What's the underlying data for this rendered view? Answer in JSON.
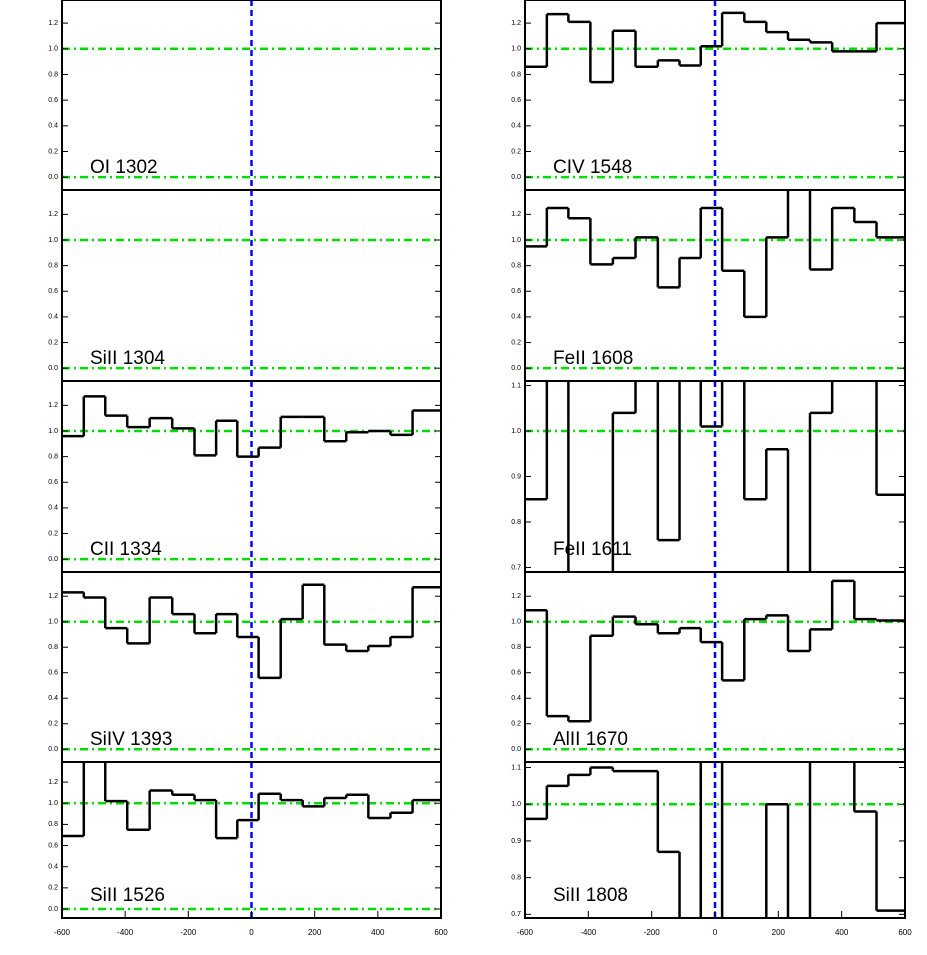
{
  "chart_data": [
    {
      "type": "line",
      "title": "OI 1302",
      "xlim": [
        -600,
        600
      ],
      "ylim": [
        -0.1,
        1.38
      ],
      "yticks": [
        {
          "value": 0,
          "label": "0.0"
        },
        0.2,
        0.4,
        0.6,
        0.8,
        {
          "value": 1,
          "label": "1.0"
        },
        1.2
      ],
      "hlines": [
        0,
        1
      ],
      "vlines": [
        0
      ],
      "hline_color": "#00dd00",
      "vline_color": "#0000ff"
    },
    {
      "type": "line",
      "title": "SiII 1304",
      "xlim": [
        -600,
        600
      ],
      "ylim": [
        -0.1,
        1.39
      ],
      "yticks": [
        {
          "value": 0,
          "label": "0.0"
        },
        0.2,
        0.4,
        0.6,
        0.8,
        {
          "value": 1,
          "label": "1.0"
        },
        1.2
      ],
      "hlines": [
        0,
        1
      ],
      "vlines": [
        0
      ],
      "hline_color": "#00dd00",
      "vline_color": "#0000ff"
    },
    {
      "type": "line",
      "title": "CII 1334",
      "xlim": [
        -600,
        600
      ],
      "ylim": [
        -0.1,
        1.39
      ],
      "yticks": [
        {
          "value": 0,
          "label": "0.0"
        },
        0.2,
        0.4,
        0.6,
        0.8,
        {
          "value": 1,
          "label": "1.0"
        },
        1.2
      ],
      "hlines": [
        0,
        1
      ],
      "vlines": [
        0
      ],
      "hline_color": "#00dd00",
      "vline_color": "#0000ff",
      "x": [
        -565,
        -497,
        -429,
        -358,
        -287,
        -215,
        -146,
        -78,
        -12,
        57,
        128,
        196,
        265,
        335,
        405,
        475,
        545
      ],
      "values": [
        0.96,
        1.27,
        1.12,
        1.03,
        1.1,
        1.02,
        0.81,
        1.08,
        0.8,
        0.87,
        1.11,
        1.11,
        0.92,
        0.99,
        1.0,
        0.97,
        1.16
      ],
      "color": "#000000"
    },
    {
      "type": "line",
      "title": "SiIV 1393",
      "xlim": [
        -600,
        600
      ],
      "ylim": [
        -0.1,
        1.39
      ],
      "yticks": [
        {
          "value": 0,
          "label": "0.0"
        },
        0.2,
        0.4,
        0.6,
        0.8,
        {
          "value": 1,
          "label": "1.0"
        },
        1.2
      ],
      "hlines": [
        0,
        1
      ],
      "vlines": [
        0
      ],
      "hline_color": "#00dd00",
      "vline_color": "#0000ff",
      "x": [
        -565,
        -497,
        -429,
        -358,
        -287,
        -215,
        -146,
        -78,
        -12,
        57,
        128,
        196,
        265,
        335,
        405,
        475,
        545
      ],
      "values": [
        1.23,
        1.19,
        0.95,
        0.83,
        1.19,
        1.06,
        0.91,
        1.06,
        0.88,
        0.56,
        1.02,
        1.29,
        0.82,
        0.77,
        0.81,
        0.88,
        1.27
      ],
      "color": "#000000"
    },
    {
      "type": "line",
      "title": "SiII 1526",
      "xlim": [
        -600,
        600
      ],
      "ylim": [
        -0.085,
        1.39
      ],
      "yticks": [
        {
          "value": 0,
          "label": "0.0"
        },
        0.2,
        0.4,
        0.6,
        0.8,
        {
          "value": 1,
          "label": "1.0"
        },
        1.2
      ],
      "xticks": [
        -600,
        -400,
        -200,
        0,
        200,
        400,
        600
      ],
      "hlines": [
        0,
        1
      ],
      "vlines": [
        0
      ],
      "hline_color": "#00dd00",
      "vline_color": "#0000ff",
      "x": [
        -565,
        -497,
        -429,
        -358,
        -287,
        -215,
        -146,
        -78,
        -12,
        57,
        128,
        196,
        265,
        335,
        405,
        475,
        545
      ],
      "values": [
        0.69,
        1.4,
        1.02,
        0.75,
        1.12,
        1.08,
        1.03,
        0.67,
        0.84,
        1.09,
        1.03,
        0.97,
        1.05,
        1.08,
        0.86,
        0.91,
        1.03
      ],
      "color": "#000000"
    },
    {
      "type": "line",
      "title": "CIV 1548",
      "xlim": [
        -600,
        600
      ],
      "ylim": [
        -0.1,
        1.38
      ],
      "yticks": [
        {
          "value": 0,
          "label": "0.0"
        },
        0.2,
        0.4,
        0.6,
        0.8,
        {
          "value": 1,
          "label": "1.0"
        },
        1.2
      ],
      "hlines": [
        0,
        1
      ],
      "vlines": [
        0
      ],
      "hline_color": "#00dd00",
      "vline_color": "#0000ff",
      "x": [
        -565,
        -497,
        -429,
        -358,
        -287,
        -215,
        -146,
        -78,
        -12,
        57,
        128,
        196,
        265,
        335,
        405,
        475,
        545
      ],
      "values": [
        0.86,
        1.27,
        1.21,
        0.74,
        1.14,
        0.86,
        0.91,
        0.87,
        1.02,
        1.28,
        1.21,
        1.13,
        1.07,
        1.05,
        0.98,
        0.98,
        1.2
      ],
      "color": "#000000"
    },
    {
      "type": "line",
      "title": "FeII 1608",
      "xlim": [
        -600,
        600
      ],
      "ylim": [
        -0.1,
        1.39
      ],
      "yticks": [
        {
          "value": 0,
          "label": "0.0"
        },
        0.2,
        0.4,
        0.6,
        0.8,
        {
          "value": 1,
          "label": "1.0"
        },
        1.2
      ],
      "hlines": [
        0,
        1
      ],
      "vlines": [
        0
      ],
      "hline_color": "#00dd00",
      "vline_color": "#0000ff",
      "x": [
        -565,
        -497,
        -429,
        -358,
        -287,
        -215,
        -146,
        -78,
        -12,
        57,
        128,
        196,
        265,
        335,
        405,
        475,
        545
      ],
      "values": [
        0.95,
        1.25,
        1.17,
        0.81,
        0.86,
        1.02,
        0.63,
        0.86,
        1.25,
        0.76,
        0.4,
        1.02,
        1.4,
        0.77,
        1.25,
        1.14,
        1.02
      ],
      "color": "#000000"
    },
    {
      "type": "line",
      "title": "FeII 1611",
      "xlim": [
        -600,
        600
      ],
      "ylim": [
        0.69,
        1.11
      ],
      "yticks": [
        0.7,
        0.8,
        0.9,
        {
          "value": 1,
          "label": "1.0"
        },
        1.1
      ],
      "hlines": [
        1
      ],
      "vlines": [
        0
      ],
      "hline_color": "#00dd00",
      "vline_color": "#0000ff",
      "x": [
        -565,
        -497,
        -429,
        -358,
        -287,
        -215,
        -146,
        -78,
        -12,
        57,
        128,
        196,
        265,
        335,
        405,
        475,
        545
      ],
      "values": [
        0.85,
        1.15,
        0.65,
        0.65,
        1.04,
        1.15,
        0.76,
        1.15,
        1.01,
        1.15,
        0.85,
        0.96,
        0.65,
        1.04,
        1.15,
        1.15,
        0.86
      ],
      "color": "#000000"
    },
    {
      "type": "line",
      "title": "AlII 1670",
      "xlim": [
        -600,
        600
      ],
      "ylim": [
        -0.1,
        1.39
      ],
      "yticks": [
        {
          "value": 0,
          "label": "0.0"
        },
        0.2,
        0.4,
        0.6,
        0.8,
        {
          "value": 1,
          "label": "1.0"
        },
        1.2
      ],
      "hlines": [
        0,
        1
      ],
      "vlines": [
        0
      ],
      "hline_color": "#00dd00",
      "vline_color": "#0000ff",
      "x": [
        -565,
        -497,
        -429,
        -358,
        -287,
        -215,
        -146,
        -78,
        -12,
        57,
        128,
        196,
        265,
        335,
        405,
        475,
        545
      ],
      "values": [
        1.09,
        0.26,
        0.22,
        0.89,
        1.04,
        0.98,
        0.91,
        0.95,
        0.84,
        0.54,
        1.02,
        1.05,
        0.77,
        0.94,
        1.32,
        1.02,
        1.01
      ],
      "color": "#000000"
    },
    {
      "type": "line",
      "title": "SiII 1808",
      "xlim": [
        -600,
        600
      ],
      "ylim": [
        0.69,
        1.115
      ],
      "yticks": [
        0.7,
        0.8,
        0.9,
        {
          "value": 1,
          "label": "1.0"
        },
        1.1
      ],
      "xticks": [
        -600,
        -400,
        -200,
        0,
        200,
        400,
        600
      ],
      "hlines": [
        1
      ],
      "vlines": [
        0
      ],
      "hline_color": "#00dd00",
      "vline_color": "#0000ff",
      "x": [
        -565,
        -497,
        -429,
        -358,
        -287,
        -215,
        -146,
        -78,
        -12,
        57,
        128,
        196,
        265,
        335,
        405,
        475,
        545
      ],
      "values": [
        0.96,
        1.05,
        1.08,
        1.1,
        1.09,
        1.09,
        0.87,
        0.65,
        1.15,
        0.65,
        0.65,
        1.0,
        0.65,
        1.15,
        1.15,
        0.98,
        0.71
      ],
      "color": "#000000"
    }
  ]
}
